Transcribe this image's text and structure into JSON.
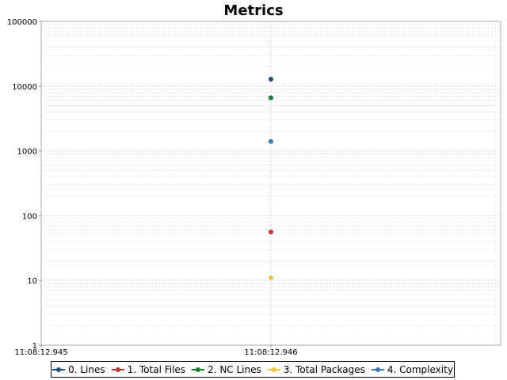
{
  "chart_data": {
    "type": "scatter",
    "title": "Metrics",
    "xlabel": "",
    "ylabel": "",
    "y_scale": "log",
    "ylim": [
      1,
      100000
    ],
    "y_ticks": [
      "1",
      "10",
      "100",
      "1000",
      "10000",
      "100000"
    ],
    "x_ticks": [
      "11:08:12.945",
      "11:08:12.946"
    ],
    "grid": true,
    "legend_position": "bottom",
    "series": [
      {
        "name": "0. Lines",
        "color": "#1f4e79",
        "points": [
          {
            "x": "11:08:12.946",
            "y": 12800
          }
        ]
      },
      {
        "name": "1. Total Files",
        "color": "#c0392b",
        "points": [
          {
            "x": "11:08:12.946",
            "y": 56
          }
        ]
      },
      {
        "name": "2. NC Lines",
        "color": "#1a7a2a",
        "points": [
          {
            "x": "11:08:12.946",
            "y": 6600
          }
        ]
      },
      {
        "name": "3. Total Packages",
        "color": "#f0c040",
        "points": [
          {
            "x": "11:08:12.946",
            "y": 11
          }
        ]
      },
      {
        "name": "4. Complexity",
        "color": "#3a78b0",
        "points": [
          {
            "x": "11:08:12.946",
            "y": 1400
          }
        ]
      }
    ]
  }
}
